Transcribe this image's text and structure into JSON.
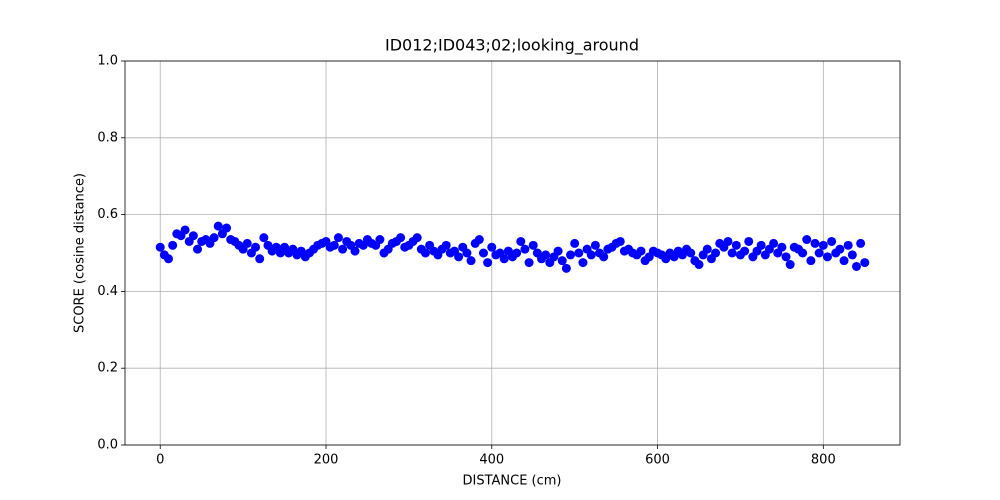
{
  "chart_data": {
    "type": "scatter",
    "title": "ID012;ID043;02;looking_around",
    "x_label": "DISTANCE (cm)",
    "y_label": "SCORE (cosine distance)",
    "color": "#0000ff",
    "grid": true,
    "xlim": [
      -42.5,
      892.5
    ],
    "xticks": [
      0,
      200,
      400,
      600,
      800
    ],
    "ylim": [
      0,
      1
    ],
    "yticks": [
      {
        "value": 0,
        "label": "0.0"
      },
      0.2,
      0.4,
      0.6,
      0.8,
      {
        "value": 1,
        "label": "1.0"
      }
    ],
    "x": [
      0,
      5,
      10,
      15,
      20,
      25,
      30,
      35,
      40,
      45,
      50,
      55,
      60,
      65,
      70,
      75,
      80,
      85,
      90,
      95,
      100,
      105,
      110,
      115,
      120,
      125,
      130,
      135,
      140,
      145,
      150,
      155,
      160,
      165,
      170,
      175,
      180,
      185,
      190,
      195,
      200,
      205,
      210,
      215,
      220,
      225,
      230,
      235,
      240,
      245,
      250,
      255,
      260,
      265,
      270,
      275,
      280,
      285,
      290,
      295,
      300,
      305,
      310,
      315,
      320,
      325,
      330,
      335,
      340,
      345,
      350,
      355,
      360,
      365,
      370,
      375,
      380,
      385,
      390,
      395,
      400,
      405,
      410,
      415,
      420,
      425,
      430,
      435,
      440,
      445,
      450,
      455,
      460,
      465,
      470,
      475,
      480,
      485,
      490,
      495,
      500,
      505,
      510,
      515,
      520,
      525,
      530,
      535,
      540,
      545,
      550,
      555,
      560,
      565,
      570,
      575,
      580,
      585,
      590,
      595,
      600,
      605,
      610,
      615,
      620,
      625,
      630,
      635,
      640,
      645,
      650,
      655,
      660,
      665,
      670,
      675,
      680,
      685,
      690,
      695,
      700,
      705,
      710,
      715,
      720,
      725,
      730,
      735,
      740,
      745,
      750,
      755,
      760,
      765,
      770,
      775,
      780,
      785,
      790,
      795,
      800,
      805,
      810,
      815,
      820,
      825,
      830,
      835,
      840,
      845,
      850
    ],
    "values": [
      0.515,
      0.495,
      0.485,
      0.52,
      0.55,
      0.545,
      0.56,
      0.53,
      0.545,
      0.51,
      0.53,
      0.535,
      0.525,
      0.54,
      0.57,
      0.55,
      0.565,
      0.535,
      0.53,
      0.52,
      0.51,
      0.525,
      0.5,
      0.515,
      0.485,
      0.54,
      0.52,
      0.505,
      0.515,
      0.5,
      0.515,
      0.5,
      0.51,
      0.495,
      0.505,
      0.49,
      0.5,
      0.51,
      0.52,
      0.525,
      0.53,
      0.515,
      0.52,
      0.54,
      0.51,
      0.53,
      0.52,
      0.505,
      0.525,
      0.52,
      0.535,
      0.525,
      0.52,
      0.535,
      0.5,
      0.51,
      0.525,
      0.53,
      0.54,
      0.515,
      0.52,
      0.53,
      0.54,
      0.51,
      0.5,
      0.52,
      0.505,
      0.495,
      0.51,
      0.52,
      0.5,
      0.505,
      0.49,
      0.515,
      0.5,
      0.48,
      0.525,
      0.535,
      0.5,
      0.475,
      0.515,
      0.495,
      0.5,
      0.485,
      0.505,
      0.49,
      0.5,
      0.53,
      0.51,
      0.475,
      0.52,
      0.5,
      0.485,
      0.495,
      0.475,
      0.49,
      0.505,
      0.48,
      0.46,
      0.495,
      0.525,
      0.5,
      0.475,
      0.51,
      0.495,
      0.52,
      0.5,
      0.49,
      0.51,
      0.515,
      0.525,
      0.53,
      0.505,
      0.51,
      0.5,
      0.495,
      0.505,
      0.48,
      0.49,
      0.505,
      0.5,
      0.495,
      0.485,
      0.5,
      0.49,
      0.505,
      0.495,
      0.51,
      0.5,
      0.48,
      0.47,
      0.495,
      0.51,
      0.485,
      0.5,
      0.525,
      0.515,
      0.53,
      0.5,
      0.52,
      0.495,
      0.505,
      0.53,
      0.49,
      0.505,
      0.52,
      0.495,
      0.51,
      0.525,
      0.5,
      0.515,
      0.49,
      0.47,
      0.515,
      0.51,
      0.5,
      0.535,
      0.48,
      0.525,
      0.5,
      0.52,
      0.49,
      0.53,
      0.5,
      0.51,
      0.48,
      0.52,
      0.495,
      0.465,
      0.525,
      0.475
    ]
  }
}
